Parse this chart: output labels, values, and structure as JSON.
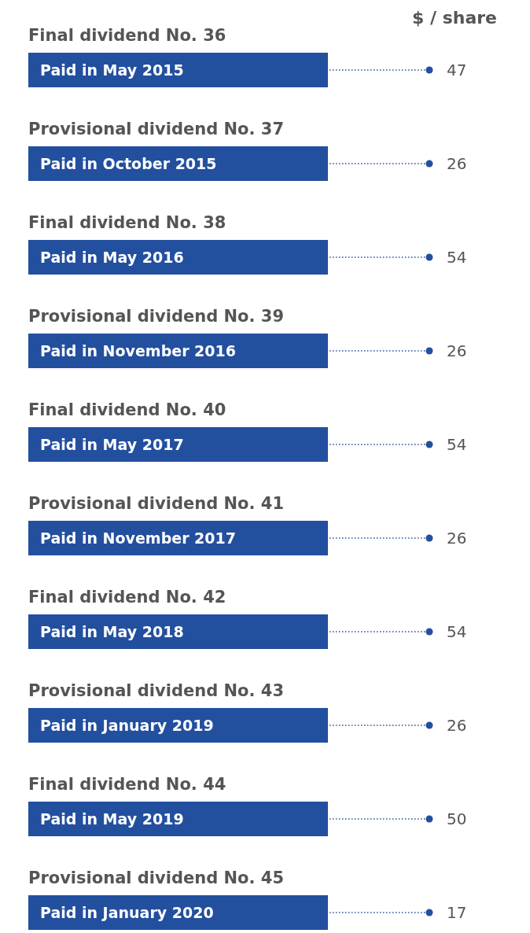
{
  "chart_data": {
    "type": "other",
    "xlabel": "$ / share",
    "color": "#234f9f",
    "annotations": [
      "Final dividend No. 36",
      "Provisional dividend No. 37",
      "Final dividend No. 38",
      "Provisional dividend No. 39",
      "Final dividend No. 40",
      "Provisional dividend No. 41",
      "Final dividend No. 42",
      "Provisional dividend No. 43",
      "Final dividend No. 44",
      "Provisional dividend No. 45"
    ],
    "categories": [
      "Paid in May 2015",
      "Paid in October 2015",
      "Paid in May 2016",
      "Paid in November 2016",
      "Paid in May 2017",
      "Paid in November 2017",
      "Paid in May 2018",
      "Paid in January 2019",
      "Paid in May 2019",
      "Paid in January 2020"
    ],
    "values": [
      47,
      26,
      54,
      26,
      54,
      26,
      54,
      26,
      50,
      17
    ],
    "data_labels": true
  }
}
